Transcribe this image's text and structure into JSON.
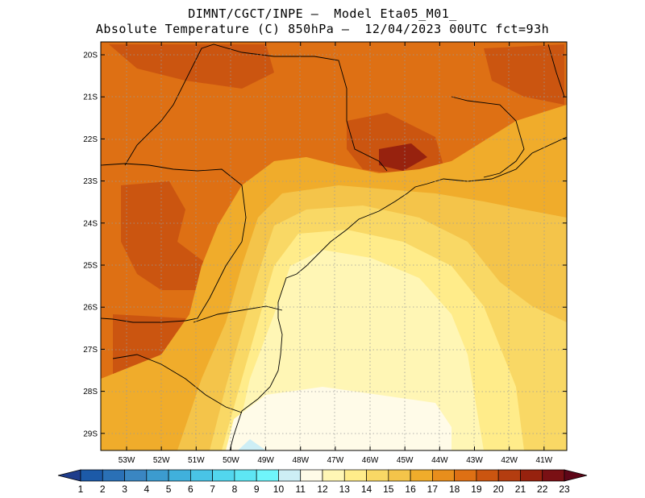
{
  "title_line1": "DIMNT/CGCT/INPE –  Model Eta05_M01_",
  "title_line2": "Absolute Temperature (C) 850hPa –  12/04/2023 00UTC fct=93h",
  "lat_labels": [
    "20S",
    "21S",
    "22S",
    "23S",
    "24S",
    "25S",
    "26S",
    "27S",
    "28S",
    "29S"
  ],
  "lon_labels": [
    "53W",
    "52W",
    "51W",
    "50W",
    "49W",
    "48W",
    "47W",
    "46W",
    "45W",
    "44W",
    "43W",
    "42W",
    "41W"
  ],
  "colorbar": {
    "labels": [
      "1",
      "2",
      "3",
      "4",
      "5",
      "6",
      "7",
      "8",
      "9",
      "10",
      "11",
      "12",
      "13",
      "14",
      "15",
      "16",
      "17",
      "18",
      "19",
      "20",
      "21",
      "22",
      "23"
    ],
    "colors": [
      "#1f3d8c",
      "#1c5aa8",
      "#2a70b6",
      "#3a86c2",
      "#3c9bcf",
      "#40b0dc",
      "#49c4e6",
      "#52d6ee",
      "#5ee6f4",
      "#6ff5fb",
      "#cdeef5",
      "#fffbe8",
      "#fff6b5",
      "#ffec8a",
      "#f9d865",
      "#f4c44a",
      "#f0ac2b",
      "#e88e1c",
      "#de7014",
      "#cb5510",
      "#b43d10",
      "#97220e",
      "#7a1014",
      "#5e0618"
    ]
  },
  "map_bounds": {
    "lon_min": -53.7,
    "lon_max": -40.5,
    "lat_min": -29.4,
    "lat_max": -19.7
  }
}
